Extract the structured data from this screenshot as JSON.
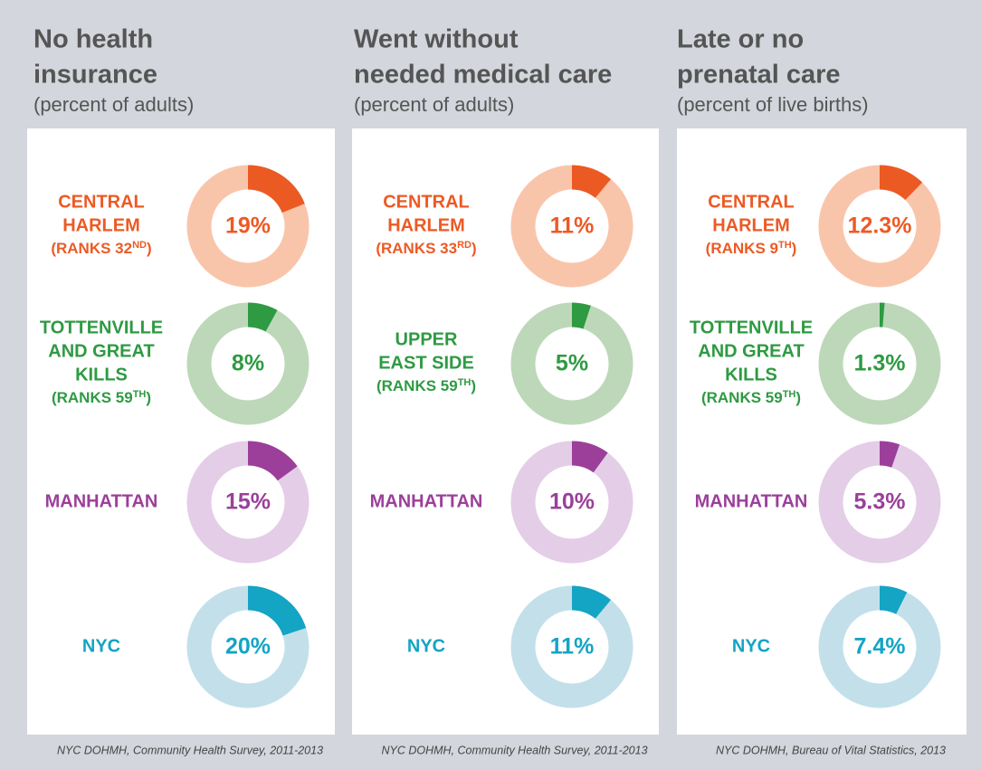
{
  "chart_data": [
    {
      "type": "donut",
      "title": [
        "No health",
        "insurance"
      ],
      "subtitle": "(percent of adults)",
      "categories": [
        [
          "CENTRAL",
          "HARLEM"
        ],
        [
          "TOTTENVILLE",
          "AND GREAT",
          "KILLS"
        ],
        [
          "MANHATTAN"
        ],
        [
          "NYC"
        ]
      ],
      "ranks": [
        [
          "(RANKS 32",
          "ND",
          ")"
        ],
        [
          "(RANKS 59",
          "TH",
          ")"
        ],
        null,
        null
      ],
      "values": [
        19,
        8,
        15,
        20
      ],
      "value_labels": [
        "19%",
        "8%",
        "15%",
        "20%"
      ],
      "colors": [
        "#ec5a24",
        "#2e9a42",
        "#9b3f9a",
        "#14a4c4"
      ],
      "track_colors": [
        "#f9c5aa",
        "#bdd8b9",
        "#e4cde7",
        "#c3e0ea"
      ],
      "source": "NYC DOHMH, Community Health Survey, 2011-2013"
    },
    {
      "type": "donut",
      "title": [
        "Went without",
        "needed medical care"
      ],
      "subtitle": "(percent of adults)",
      "categories": [
        [
          "CENTRAL",
          "HARLEM"
        ],
        [
          "UPPER",
          "EAST SIDE"
        ],
        [
          "MANHATTAN"
        ],
        [
          "NYC"
        ]
      ],
      "ranks": [
        [
          "(RANKS 33",
          "RD",
          ")"
        ],
        [
          "(RANKS 59",
          "TH",
          ")"
        ],
        null,
        null
      ],
      "values": [
        11,
        5,
        10,
        11
      ],
      "value_labels": [
        "11%",
        "5%",
        "10%",
        "11%"
      ],
      "colors": [
        "#ec5a24",
        "#2e9a42",
        "#9b3f9a",
        "#14a4c4"
      ],
      "track_colors": [
        "#f9c5aa",
        "#bdd8b9",
        "#e4cde7",
        "#c3e0ea"
      ],
      "source": "NYC DOHMH, Community Health Survey, 2011-2013"
    },
    {
      "type": "donut",
      "title": [
        "Late or no",
        "prenatal care"
      ],
      "subtitle": "(percent of live births)",
      "categories": [
        [
          "CENTRAL",
          "HARLEM"
        ],
        [
          "TOTTENVILLE",
          "AND GREAT",
          "KILLS"
        ],
        [
          "MANHATTAN"
        ],
        [
          "NYC"
        ]
      ],
      "ranks": [
        [
          "(RANKS 9",
          "TH",
          ")"
        ],
        [
          "(RANKS 59",
          "TH",
          ")"
        ],
        null,
        null
      ],
      "values": [
        12.3,
        1.3,
        5.3,
        7.4
      ],
      "value_labels": [
        "12.3%",
        "1.3%",
        "5.3%",
        "7.4%"
      ],
      "colors": [
        "#ec5a24",
        "#2e9a42",
        "#9b3f9a",
        "#14a4c4"
      ],
      "track_colors": [
        "#f9c5aa",
        "#bdd8b9",
        "#e4cde7",
        "#c3e0ea"
      ],
      "source": "NYC DOHMH, Bureau of Vital Statistics, 2013"
    }
  ]
}
